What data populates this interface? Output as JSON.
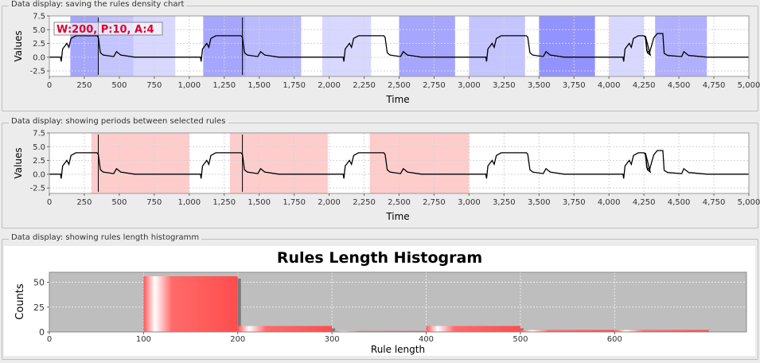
{
  "panels": [
    {
      "title": "Data display: saving the rules density chart"
    },
    {
      "title": "Data display: showing periods between selected rules"
    },
    {
      "title": "Data display: showing rules length histogramm"
    }
  ],
  "density_chart": {
    "ylabel": "Values",
    "xlabel": "Time",
    "xticks": [
      "0",
      "250",
      "500",
      "750",
      "1,000",
      "1,250",
      "1,500",
      "1,750",
      "2,000",
      "2,250",
      "2,500",
      "2,750",
      "3,000",
      "3,250",
      "3,500",
      "3,750",
      "4,000",
      "4,250",
      "4,500",
      "4,750",
      "5,000"
    ],
    "yticks": [
      "7.5",
      "5.0",
      "2.5",
      "0.0",
      "-2.5"
    ],
    "annotation": "W:200, P:10, A:4",
    "colors": {
      "density": "#3a3aff",
      "annotation_text": "#e0002a"
    }
  },
  "periods_chart": {
    "ylabel": "Values",
    "xlabel": "Time",
    "xticks": [
      "0",
      "250",
      "500",
      "750",
      "1,000",
      "1,250",
      "1,500",
      "1,750",
      "2,000",
      "2,250",
      "2,500",
      "2,750",
      "3,000",
      "3,250",
      "3,500",
      "3,750",
      "4,000",
      "4,250",
      "4,500",
      "4,750",
      "5,000"
    ],
    "yticks": [
      "7.5",
      "5.0",
      "2.5",
      "0.0",
      "-2.5"
    ],
    "colors": {
      "period": "#ffcccc"
    }
  },
  "chart_data": [
    {
      "type": "line",
      "title": "",
      "xlabel": "Time",
      "ylabel": "Values",
      "xlim": [
        0,
        5000
      ],
      "ylim": [
        -3.5,
        7.5
      ],
      "series": [
        {
          "values_summary": "periodic signal baseline ~0 with plateaus ~4.0 at 350, 1380, 2400, 3420, 4260"
        }
      ],
      "cursor_lines_x": [
        350,
        1380
      ],
      "density_bands": [
        [
          150,
          350,
          0.45
        ],
        [
          350,
          600,
          0.3
        ],
        [
          600,
          900,
          0.2
        ],
        [
          1100,
          1400,
          0.45
        ],
        [
          1400,
          1800,
          0.35
        ],
        [
          1950,
          2300,
          0.2
        ],
        [
          2500,
          2900,
          0.45
        ],
        [
          3000,
          3400,
          0.3
        ],
        [
          3500,
          3900,
          0.55
        ],
        [
          4000,
          4250,
          0.2
        ],
        [
          4330,
          4700,
          0.4
        ]
      ]
    },
    {
      "type": "line",
      "title": "",
      "xlabel": "Time",
      "ylabel": "Values",
      "xlim": [
        0,
        5000
      ],
      "ylim": [
        -3.5,
        7.5
      ],
      "highlighted_periods": [
        [
          300,
          1000
        ],
        [
          1290,
          1990
        ],
        [
          2290,
          3000
        ]
      ],
      "cursor_lines_x": [
        350,
        1380
      ]
    },
    {
      "type": "bar",
      "title": "Rules Length Histogram",
      "xlabel": "Rule length",
      "ylabel": "Counts",
      "xlim": [
        0,
        740
      ],
      "ylim": [
        0,
        60
      ],
      "xticks": [
        "0",
        "100",
        "200",
        "300",
        "400",
        "500",
        "600"
      ],
      "yticks": [
        "50",
        "25",
        "0"
      ],
      "bins": [
        {
          "start": 100,
          "end": 200,
          "value": 56
        },
        {
          "start": 200,
          "end": 300,
          "value": 6
        },
        {
          "start": 300,
          "end": 400,
          "value": 1
        },
        {
          "start": 400,
          "end": 500,
          "value": 6
        },
        {
          "start": 500,
          "end": 600,
          "value": 2
        },
        {
          "start": 600,
          "end": 700,
          "value": 2
        }
      ],
      "colors": {
        "bar": "#ff5555",
        "plot_bg": "#bebebe"
      }
    }
  ]
}
